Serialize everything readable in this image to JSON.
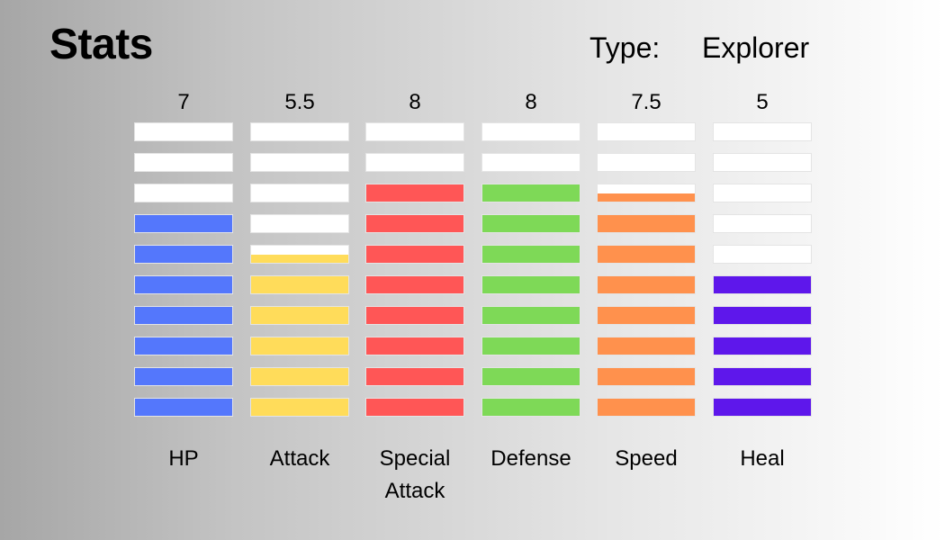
{
  "title": "Stats",
  "type_label": "Type:",
  "type_value": "Explorer",
  "chart_data": {
    "type": "bar",
    "title": "Stats",
    "max_value": 10,
    "segments_per_bar": 10,
    "categories": [
      "HP",
      "Attack",
      "Special Attack",
      "Defense",
      "Speed",
      "Heal"
    ],
    "category_lines": [
      [
        "HP"
      ],
      [
        "Attack"
      ],
      [
        "Special",
        "Attack"
      ],
      [
        "Defense"
      ],
      [
        "Speed"
      ],
      [
        "Heal"
      ]
    ],
    "values": [
      7,
      5.5,
      8,
      8,
      7.5,
      5
    ],
    "value_labels": [
      "7",
      "5.5",
      "8",
      "8",
      "7.5",
      "5"
    ],
    "colors": [
      "#5477fc",
      "#ffdc5a",
      "#ff5656",
      "#7ed957",
      "#ff914d",
      "#5e17eb"
    ],
    "empty_color": "#ffffff"
  }
}
